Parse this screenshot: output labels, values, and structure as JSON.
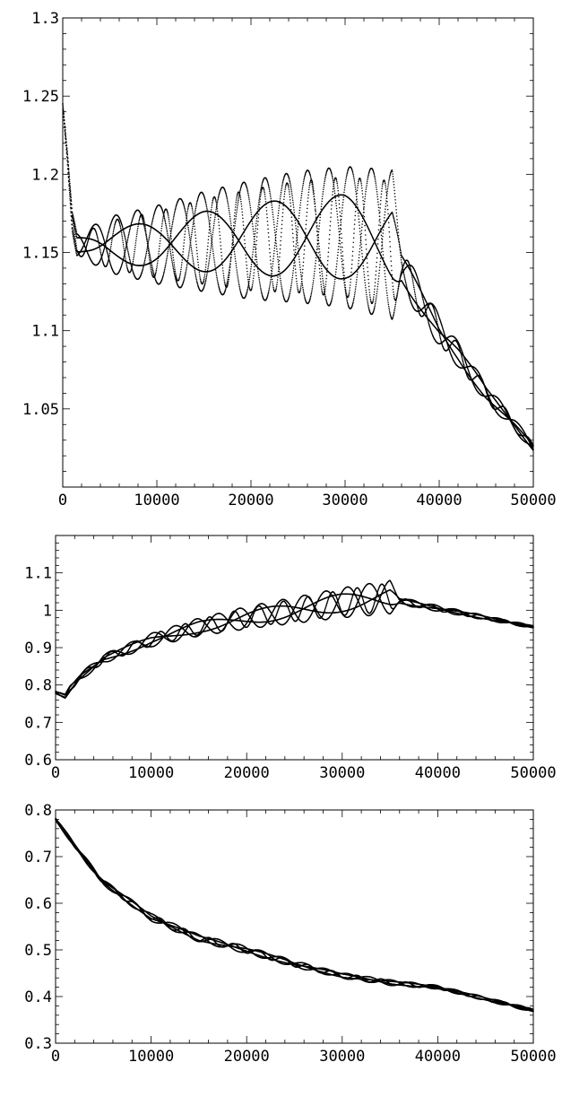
{
  "chart_data": [
    {
      "type": "scatter",
      "xlim": [
        0,
        50000
      ],
      "ylim": [
        1.0,
        1.3
      ],
      "x_ticks": [
        {
          "value": 0,
          "label": "0"
        },
        {
          "value": 10000,
          "label": "10000"
        },
        {
          "value": 20000,
          "label": "20000"
        },
        {
          "value": 30000,
          "label": "30000"
        },
        {
          "value": 40000,
          "label": "40000"
        },
        {
          "value": 50000,
          "label": "50000"
        }
      ],
      "y_ticks": [
        {
          "value": 1.05,
          "label": "1.05"
        },
        {
          "value": 1.1,
          "label": "1.1"
        },
        {
          "value": 1.15,
          "label": "1.15"
        },
        {
          "value": 1.2,
          "label": "1.2"
        },
        {
          "value": 1.25,
          "label": "1.25"
        },
        {
          "value": 1.3,
          "label": "1.3"
        }
      ],
      "grid": false,
      "marker_color": "#000000",
      "series": [
        {
          "x": [
            0,
            500,
            1000,
            1500,
            2500,
            5000,
            10000,
            15000,
            20000,
            25000,
            30000,
            35000,
            36000,
            38000,
            40000,
            42000,
            45000,
            48000,
            50000
          ],
          "y_mid": [
            1.245,
            1.21,
            1.17,
            1.155,
            1.155,
            1.155,
            1.155,
            1.157,
            1.158,
            1.16,
            1.16,
            1.155,
            1.14,
            1.12,
            1.1,
            1.085,
            1.06,
            1.04,
            1.025
          ],
          "y_amp": [
            0.0,
            0.004,
            0.006,
            0.008,
            0.01,
            0.018,
            0.025,
            0.032,
            0.038,
            0.042,
            0.045,
            0.048,
            0.014,
            0.012,
            0.01,
            0.008,
            0.006,
            0.004,
            0.003
          ]
        }
      ]
    },
    {
      "type": "scatter",
      "xlim": [
        0,
        50000
      ],
      "ylim": [
        0.6,
        1.2
      ],
      "x_ticks": [
        {
          "value": 0,
          "label": "0"
        },
        {
          "value": 10000,
          "label": "10000"
        },
        {
          "value": 20000,
          "label": "20000"
        },
        {
          "value": 30000,
          "label": "30000"
        },
        {
          "value": 40000,
          "label": "40000"
        },
        {
          "value": 50000,
          "label": "50000"
        }
      ],
      "y_ticks": [
        {
          "value": 0.6,
          "label": "0.6"
        },
        {
          "value": 0.7,
          "label": "0.7"
        },
        {
          "value": 0.8,
          "label": "0.8"
        },
        {
          "value": 0.9,
          "label": "0.9"
        },
        {
          "value": 1.0,
          "label": "1"
        },
        {
          "value": 1.1,
          "label": "1.1"
        }
      ],
      "grid": false,
      "marker_color": "#000000",
      "series": [
        {
          "x": [
            0,
            1000,
            1500,
            2500,
            5000,
            10000,
            15000,
            20000,
            25000,
            30000,
            35000,
            36000,
            40000,
            45000,
            50000
          ],
          "y_mid": [
            0.78,
            0.77,
            0.79,
            0.82,
            0.87,
            0.92,
            0.955,
            0.98,
            1.0,
            1.02,
            1.035,
            1.025,
            1.005,
            0.98,
            0.955
          ],
          "y_amp": [
            0.005,
            0.005,
            0.008,
            0.01,
            0.012,
            0.018,
            0.024,
            0.03,
            0.035,
            0.04,
            0.045,
            0.01,
            0.008,
            0.006,
            0.004
          ]
        }
      ]
    },
    {
      "type": "scatter",
      "xlim": [
        0,
        50000
      ],
      "ylim": [
        0.3,
        0.8
      ],
      "x_ticks": [
        {
          "value": 0,
          "label": "0"
        },
        {
          "value": 10000,
          "label": "10000"
        },
        {
          "value": 20000,
          "label": "20000"
        },
        {
          "value": 30000,
          "label": "30000"
        },
        {
          "value": 40000,
          "label": "40000"
        },
        {
          "value": 50000,
          "label": "50000"
        }
      ],
      "y_ticks": [
        {
          "value": 0.3,
          "label": "0.3"
        },
        {
          "value": 0.4,
          "label": "0.4"
        },
        {
          "value": 0.5,
          "label": "0.5"
        },
        {
          "value": 0.6,
          "label": "0.6"
        },
        {
          "value": 0.7,
          "label": "0.7"
        },
        {
          "value": 0.8,
          "label": "0.8"
        }
      ],
      "grid": false,
      "marker_color": "#000000",
      "series": [
        {
          "x": [
            0,
            2500,
            5000,
            10000,
            15000,
            20000,
            25000,
            30000,
            35000,
            40000,
            45000,
            50000
          ],
          "y_mid": [
            0.78,
            0.71,
            0.645,
            0.57,
            0.525,
            0.5,
            0.47,
            0.445,
            0.43,
            0.42,
            0.395,
            0.37
          ],
          "y_amp": [
            0.004,
            0.005,
            0.006,
            0.008,
            0.008,
            0.008,
            0.007,
            0.006,
            0.006,
            0.004,
            0.004,
            0.004
          ]
        }
      ]
    }
  ]
}
